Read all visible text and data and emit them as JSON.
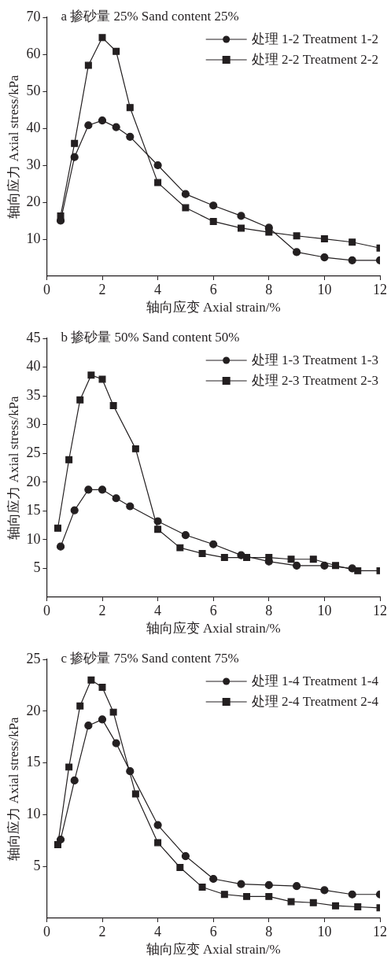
{
  "chart_data": [
    {
      "type": "line",
      "title": "a 掺砂量 25% Sand content 25%",
      "xlabel": "轴向应变 Axial strain/%",
      "ylabel": "轴向应力 Axial stress/kPa",
      "xlim": [
        0,
        12
      ],
      "xticks": [
        0,
        2,
        4,
        6,
        8,
        10,
        12
      ],
      "ylim": [
        0,
        70
      ],
      "yticks": [
        10,
        20,
        30,
        40,
        50,
        60,
        70
      ],
      "grid": false,
      "legend": "top right",
      "line_style": "solid",
      "series": [
        {
          "name": "处理 1-2 Treatment 1-2",
          "color": "#231f20",
          "marker": "circle",
          "x": [
            0.5,
            1,
            1.5,
            2,
            2.5,
            3,
            4,
            5,
            6,
            7,
            8,
            9,
            10,
            11,
            12
          ],
          "values": [
            15.0,
            32.2,
            40.8,
            42.1,
            40.3,
            37.7,
            30.0,
            22.2,
            19.1,
            16.3,
            13.1,
            6.5,
            5.1,
            4.3,
            4.3
          ]
        },
        {
          "name": "处理 2-2 Treatment 2-2",
          "color": "#231f20",
          "marker": "square",
          "x": [
            0.5,
            1,
            1.5,
            2,
            2.5,
            3,
            4,
            5,
            6,
            7,
            8,
            9,
            10,
            11,
            12
          ],
          "values": [
            16.3,
            35.9,
            57.0,
            64.5,
            60.8,
            45.6,
            25.3,
            18.5,
            14.8,
            13.0,
            11.9,
            10.9,
            10.1,
            9.2,
            7.6
          ]
        }
      ]
    },
    {
      "type": "line",
      "title": "b 掺砂量 50% Sand content 50%",
      "xlabel": "轴向应变 Axial strain/%",
      "ylabel": "轴向应力 Axial stress/kPa",
      "xlim": [
        0,
        12
      ],
      "xticks": [
        0,
        2,
        4,
        6,
        8,
        10,
        12
      ],
      "ylim": [
        0,
        45
      ],
      "yticks": [
        5,
        10,
        15,
        20,
        25,
        30,
        35,
        40,
        45
      ],
      "grid": false,
      "legend": "top right",
      "line_style": "solid",
      "series": [
        {
          "name": "处理 1-3 Treatment 1-3",
          "color": "#231f20",
          "marker": "circle",
          "x": [
            0.5,
            1,
            1.5,
            2,
            2.5,
            3,
            4,
            5,
            6,
            7,
            8,
            9,
            10,
            11
          ],
          "values": [
            8.8,
            15.1,
            18.7,
            18.7,
            17.2,
            15.8,
            13.2,
            10.8,
            9.2,
            7.3,
            6.2,
            5.5,
            5.5,
            5.0
          ]
        },
        {
          "name": "处理 2-3 Treatment 2-3",
          "color": "#231f20",
          "marker": "square",
          "x": [
            0.4,
            0.8,
            1.2,
            1.6,
            2.0,
            2.4,
            3.2,
            4.0,
            4.8,
            5.6,
            6.4,
            7.2,
            8.0,
            8.8,
            9.6,
            10.4,
            11.2,
            12
          ],
          "values": [
            12.0,
            23.9,
            34.3,
            38.6,
            37.9,
            33.3,
            25.8,
            11.8,
            8.6,
            7.6,
            6.9,
            6.9,
            6.9,
            6.6,
            6.6,
            5.5,
            4.6,
            4.6
          ]
        }
      ]
    },
    {
      "type": "line",
      "title": "c 掺砂量 75% Sand content 75%",
      "xlabel": "轴向应变 Axial strain/%",
      "ylabel": "轴向应力 Axial stress/kPa",
      "xlim": [
        0,
        12
      ],
      "xticks": [
        0,
        2,
        4,
        6,
        8,
        10,
        12
      ],
      "ylim": [
        0,
        25
      ],
      "yticks": [
        5,
        10,
        15,
        20,
        25
      ],
      "grid": false,
      "legend": "top right",
      "line_style": "solid",
      "series": [
        {
          "name": "处理 1-4 Treatment 1-4",
          "color": "#231f20",
          "marker": "circle",
          "x": [
            0.5,
            1,
            1.5,
            2,
            2.5,
            3,
            4,
            5,
            6,
            7,
            8,
            9,
            10,
            11,
            12
          ],
          "values": [
            7.6,
            13.3,
            18.6,
            19.2,
            16.9,
            14.2,
            9.0,
            6.0,
            3.8,
            3.3,
            3.2,
            3.1,
            2.7,
            2.3,
            2.3
          ]
        },
        {
          "name": "处理 2-4 Treatment 2-4",
          "color": "#231f20",
          "marker": "square",
          "x": [
            0.4,
            0.8,
            1.2,
            1.6,
            2.0,
            2.4,
            3.2,
            4.0,
            4.8,
            5.6,
            6.4,
            7.2,
            8.0,
            8.8,
            9.6,
            10.4,
            11.2,
            12
          ],
          "values": [
            7.1,
            14.6,
            20.5,
            23.0,
            22.3,
            19.9,
            12.0,
            7.3,
            4.9,
            3.0,
            2.3,
            2.1,
            2.1,
            1.6,
            1.5,
            1.2,
            1.1,
            1.0
          ]
        }
      ]
    }
  ]
}
